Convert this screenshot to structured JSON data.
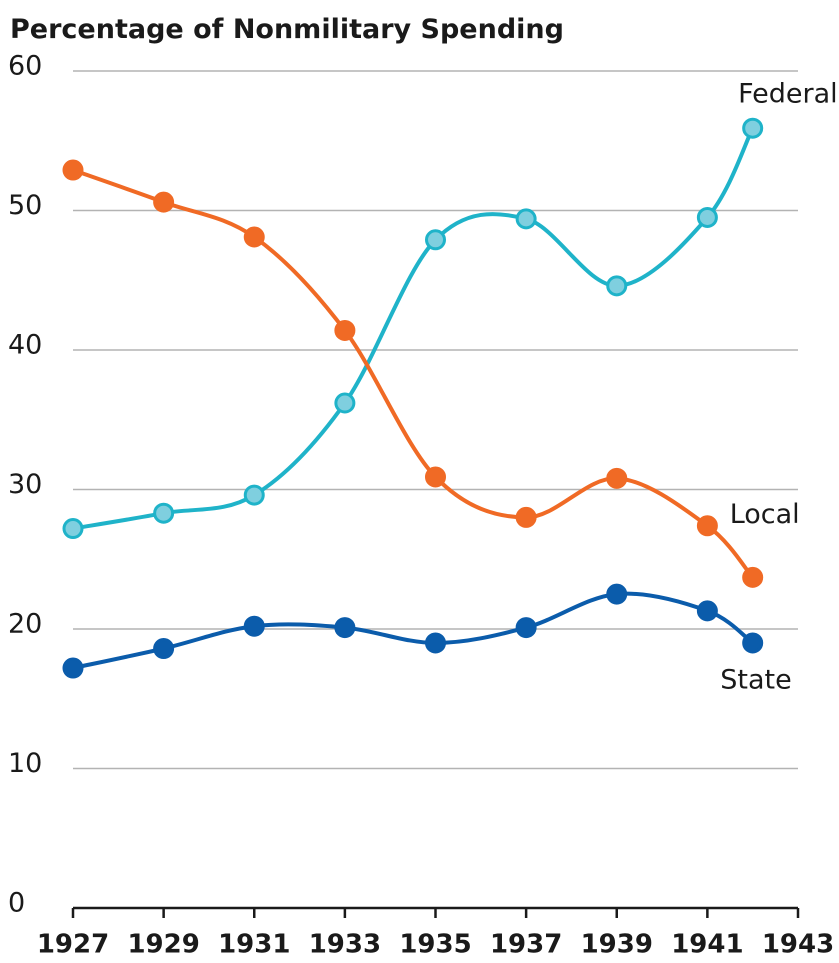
{
  "chart_data": {
    "type": "line",
    "title": "Percentage of Nonmilitary Spending",
    "x": [
      1927,
      1929,
      1931,
      1933,
      1935,
      1937,
      1939,
      1941,
      1942
    ],
    "series": [
      {
        "name": "Federal",
        "color": "#1fb3c9",
        "marker_fill": "#7fcfdf",
        "values": [
          27.2,
          28.3,
          29.6,
          36.2,
          47.9,
          49.4,
          44.6,
          49.5,
          55.9
        ]
      },
      {
        "name": "Local",
        "color": "#f06a25",
        "marker_fill": "#f06a25",
        "values": [
          52.9,
          50.6,
          48.1,
          41.4,
          30.9,
          28.0,
          30.8,
          27.4,
          23.7
        ]
      },
      {
        "name": "State",
        "color": "#0b5cab",
        "marker_fill": "#0b5cab",
        "values": [
          17.2,
          18.6,
          20.2,
          20.1,
          19.0,
          20.1,
          22.5,
          21.3,
          19.0
        ]
      }
    ],
    "xlim": [
      1927,
      1943
    ],
    "xticks": [
      1927,
      1929,
      1931,
      1933,
      1935,
      1937,
      1939,
      1941,
      1943
    ],
    "ylim": [
      0,
      60
    ],
    "yticks": [
      0,
      10,
      20,
      30,
      40,
      50,
      60
    ],
    "grid": true
  }
}
